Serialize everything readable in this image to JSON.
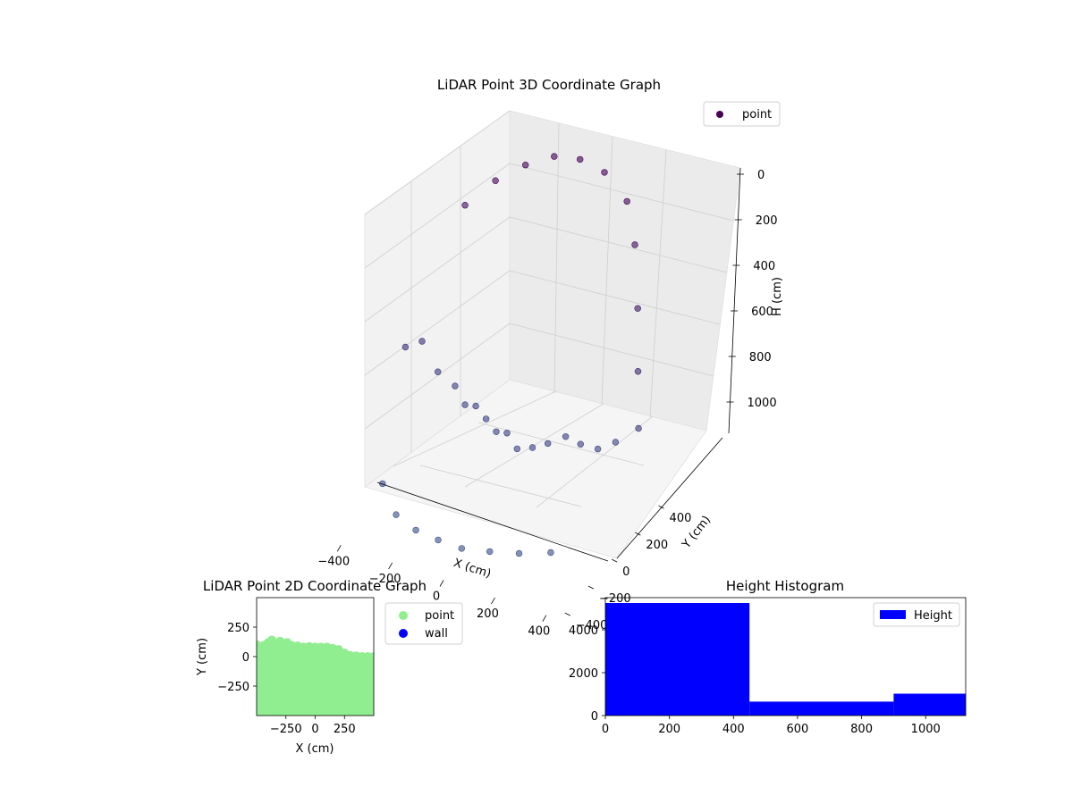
{
  "chart_data": [
    {
      "type": "scatter",
      "title": "LiDAR Point 3D Coordinate Graph",
      "xlabel": "X (cm)",
      "ylabel": "Y (cm)",
      "zlabel": "H (cm)",
      "x_ticks": [
        -400,
        -200,
        0,
        200,
        400
      ],
      "y_ticks": [
        -400,
        -200,
        0,
        200,
        400
      ],
      "z_ticks": [
        0,
        200,
        400,
        600,
        800,
        1000
      ],
      "xlim": [
        -450,
        450
      ],
      "ylim": [
        -450,
        450
      ],
      "zlim": [
        0,
        1100
      ],
      "z_inverted": true,
      "grid": true,
      "legend": {
        "placement": "top-right",
        "entries": [
          {
            "label": "point",
            "color": "#440154"
          }
        ]
      },
      "series": [
        {
          "name": "point",
          "colormap": "viridis (depth-shaded, purple to blue)",
          "points_xyh": [
            [
              -420,
              100,
              680
            ],
            [
              -400,
              200,
              700
            ],
            [
              -360,
              260,
              820
            ],
            [
              -300,
              280,
              860
            ],
            [
              -250,
              260,
              900
            ],
            [
              -200,
              240,
              880
            ],
            [
              -150,
              220,
              900
            ],
            [
              -100,
              200,
              920
            ],
            [
              -50,
              180,
              900
            ],
            [
              0,
              160,
              930
            ],
            [
              50,
              180,
              920
            ],
            [
              100,
              200,
              900
            ],
            [
              150,
              240,
              880
            ],
            [
              200,
              260,
              900
            ],
            [
              250,
              300,
              920
            ],
            [
              300,
              340,
              900
            ],
            [
              -400,
              -100,
              1050
            ],
            [
              -300,
              -200,
              1080
            ],
            [
              -200,
              -250,
              1080
            ],
            [
              -100,
              -280,
              1070
            ],
            [
              0,
              -300,
              1060
            ],
            [
              100,
              -280,
              1050
            ],
            [
              200,
              -250,
              1040
            ],
            [
              300,
              -200,
              1030
            ],
            [
              -300,
              300,
              250
            ],
            [
              -200,
              330,
              150
            ],
            [
              -100,
              360,
              80
            ],
            [
              0,
              380,
              30
            ],
            [
              100,
              380,
              10
            ],
            [
              200,
              370,
              20
            ],
            [
              300,
              350,
              80
            ],
            [
              350,
              320,
              200
            ],
            [
              380,
              300,
              400
            ],
            [
              400,
              280,
              600
            ],
            [
              420,
              260,
              780
            ]
          ]
        }
      ]
    },
    {
      "type": "scatter",
      "title": "LiDAR Point 2D Coordinate Graph",
      "xlabel": "X (cm)",
      "ylabel": "Y (cm)",
      "x_ticks": [
        -250,
        0,
        250
      ],
      "y_ticks": [
        250,
        0,
        -250
      ],
      "xlim": [
        -500,
        500
      ],
      "ylim": [
        -500,
        500
      ],
      "legend": {
        "placement": "outside-right",
        "entries": [
          {
            "label": "point",
            "color": "#90ee90"
          },
          {
            "label": "wall",
            "color": "#0000ff"
          }
        ]
      },
      "series": [
        {
          "name": "point",
          "color": "#90ee90",
          "top_edge_xy": [
            [
              -500,
              100
            ],
            [
              -440,
              95
            ],
            [
              -400,
              120
            ],
            [
              -370,
              140
            ],
            [
              -330,
              110
            ],
            [
              -300,
              130
            ],
            [
              -270,
              100
            ],
            [
              -240,
              120
            ],
            [
              -200,
              95
            ],
            [
              -150,
              90
            ],
            [
              -100,
              80
            ],
            [
              -50,
              85
            ],
            [
              0,
              80
            ],
            [
              50,
              80
            ],
            [
              100,
              80
            ],
            [
              150,
              70
            ],
            [
              200,
              60
            ],
            [
              250,
              30
            ],
            [
              300,
              10
            ],
            [
              350,
              5
            ],
            [
              400,
              0
            ],
            [
              450,
              0
            ],
            [
              500,
              0
            ]
          ],
          "bottom_y": -500
        },
        {
          "name": "wall",
          "color": "#0000ff",
          "points_xy": []
        }
      ]
    },
    {
      "type": "bar",
      "title": "Height Histogram",
      "xlabel": "",
      "ylabel": "",
      "x_ticks": [
        0,
        200,
        400,
        600,
        800,
        1000
      ],
      "y_ticks": [
        0,
        2000,
        4000
      ],
      "xlim": [
        0,
        1125
      ],
      "ylim": [
        0,
        5500
      ],
      "legend": {
        "placement": "top-right",
        "entries": [
          {
            "label": "Height",
            "color": "#0000ff"
          }
        ]
      },
      "series": [
        {
          "name": "Height",
          "color": "#0000ff",
          "bins": [
            {
              "start": 0,
              "end": 450,
              "count": 5250
            },
            {
              "start": 450,
              "end": 900,
              "count": 650
            },
            {
              "start": 900,
              "end": 1125,
              "count": 1020
            }
          ]
        }
      ]
    }
  ]
}
